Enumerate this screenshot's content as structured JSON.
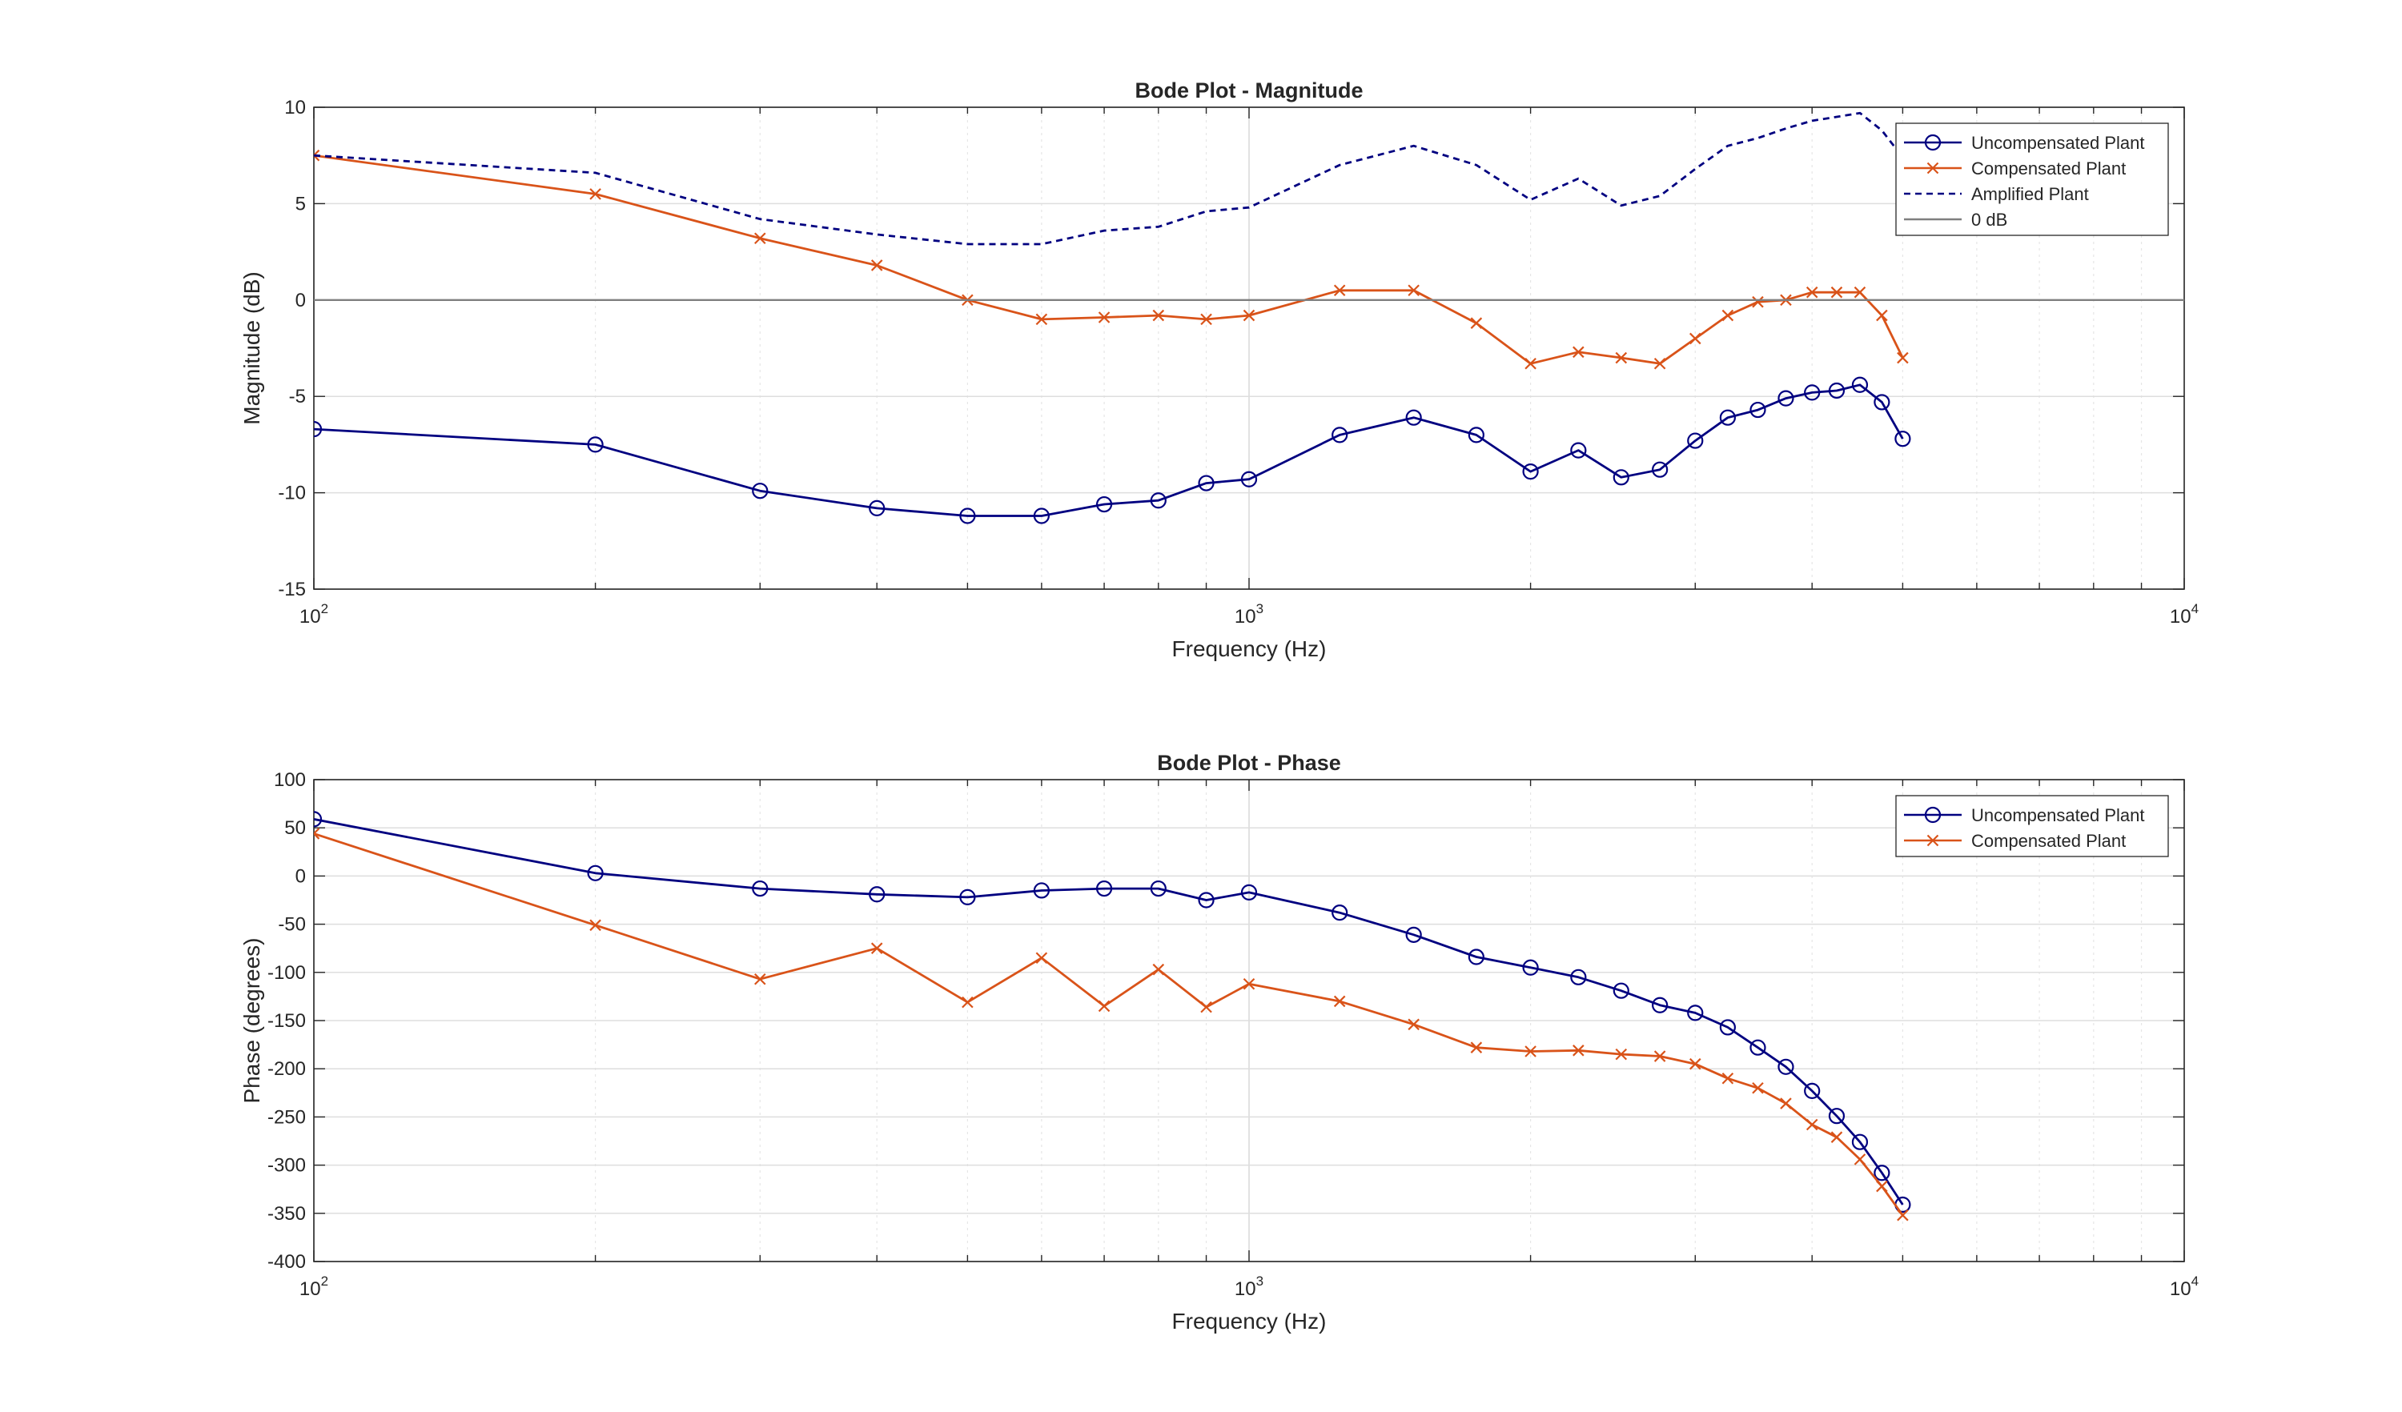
{
  "chart_data": [
    {
      "type": "line",
      "title": "Bode Plot - Magnitude",
      "xlabel": "Frequency (Hz)",
      "ylabel": "Magnitude (dB)",
      "xscale": "log",
      "xlim": [
        100,
        10000
      ],
      "ylim": [
        -15,
        10
      ],
      "yticks": [
        "10",
        "5",
        "0",
        "-5",
        "-10",
        "-15"
      ],
      "xticks": [
        {
          "base": "10",
          "exp": "2"
        },
        {
          "base": "10",
          "exp": "3"
        },
        {
          "base": "10",
          "exp": "4"
        }
      ],
      "grid": true,
      "legend_position": "top-right",
      "legend": [
        "Uncompensated Plant",
        "Compensated Plant",
        "Amplified Plant",
        "0 dB"
      ],
      "series": [
        {
          "name": "Uncompensated Plant",
          "color": "#000080",
          "marker": "circle",
          "style": "solid",
          "x": [
            100,
            200,
            300,
            400,
            500,
            600,
            700,
            800,
            900,
            1000,
            1250,
            1500,
            1750,
            2000,
            2250,
            2500,
            2750,
            3000,
            3250,
            3500,
            3750,
            4000,
            4250,
            4500,
            4750,
            5000
          ],
          "y": [
            -6.7,
            -7.5,
            -9.9,
            -10.8,
            -11.2,
            -11.2,
            -10.6,
            -10.4,
            -9.5,
            -9.3,
            -7.0,
            -6.1,
            -7.0,
            -8.9,
            -7.8,
            -9.2,
            -8.8,
            -7.3,
            -6.1,
            -5.7,
            -5.1,
            -4.8,
            -4.7,
            -4.4,
            -5.3,
            -7.2
          ]
        },
        {
          "name": "Compensated Plant",
          "color": "#D95319",
          "marker": "x",
          "style": "solid",
          "x": [
            100,
            200,
            300,
            400,
            500,
            600,
            700,
            800,
            900,
            1000,
            1250,
            1500,
            1750,
            2000,
            2250,
            2500,
            2750,
            3000,
            3250,
            3500,
            3750,
            4000,
            4250,
            4500,
            4750,
            5000
          ],
          "y": [
            7.5,
            5.5,
            3.2,
            1.8,
            0.0,
            -1.0,
            -0.9,
            -0.8,
            -1.0,
            -0.8,
            0.5,
            0.5,
            -1.2,
            -3.3,
            -2.7,
            -3.0,
            -3.3,
            -2.0,
            -0.8,
            -0.1,
            0.0,
            0.4,
            0.4,
            0.4,
            -0.8,
            -3.0
          ]
        },
        {
          "name": "Amplified Plant",
          "color": "#000080",
          "marker": "none",
          "style": "dashed",
          "x": [
            100,
            200,
            300,
            400,
            500,
            600,
            700,
            800,
            900,
            1000,
            1250,
            1500,
            1750,
            2000,
            2250,
            2500,
            2750,
            3000,
            3250,
            3500,
            3750,
            4000,
            4250,
            4500,
            4750,
            5000
          ],
          "y": [
            7.5,
            6.6,
            4.2,
            3.4,
            2.9,
            2.9,
            3.6,
            3.8,
            4.6,
            4.8,
            7.0,
            8.0,
            7.0,
            5.2,
            6.3,
            4.9,
            5.4,
            6.8,
            8.0,
            8.4,
            8.9,
            9.3,
            9.5,
            9.7,
            8.8,
            7.4
          ]
        },
        {
          "name": "0 dB",
          "color": "#7F7F7F",
          "marker": "none",
          "style": "solid",
          "x": [
            100,
            10000
          ],
          "y": [
            0,
            0
          ]
        }
      ]
    },
    {
      "type": "line",
      "title": "Bode Plot - Phase",
      "xlabel": "Frequency (Hz)",
      "ylabel": "Phase (degrees)",
      "xscale": "log",
      "xlim": [
        100,
        10000
      ],
      "ylim": [
        -400,
        100
      ],
      "yticks": [
        "100",
        "50",
        "0",
        "-50",
        "-100",
        "-150",
        "-200",
        "-250",
        "-300",
        "-350",
        "-400"
      ],
      "xticks": [
        {
          "base": "10",
          "exp": "2"
        },
        {
          "base": "10",
          "exp": "3"
        },
        {
          "base": "10",
          "exp": "4"
        }
      ],
      "grid": true,
      "legend_position": "top-right",
      "legend": [
        "Uncompensated Plant",
        "Compensated Plant"
      ],
      "series": [
        {
          "name": "Uncompensated Plant",
          "color": "#000080",
          "marker": "circle",
          "style": "solid",
          "x": [
            100,
            200,
            300,
            400,
            500,
            600,
            700,
            800,
            900,
            1000,
            1250,
            1500,
            1750,
            2000,
            2250,
            2500,
            2750,
            3000,
            3250,
            3500,
            3750,
            4000,
            4250,
            4500,
            4750,
            5000
          ],
          "y": [
            59,
            3,
            -13,
            -19,
            -22,
            -15,
            -13,
            -13,
            -25,
            -17,
            -38,
            -61,
            -84,
            -95,
            -105,
            -119,
            -134,
            -142,
            -157,
            -178,
            -198,
            -223,
            -249,
            -276,
            -308,
            -341
          ]
        },
        {
          "name": "Compensated Plant",
          "color": "#D95319",
          "marker": "x",
          "style": "solid",
          "x": [
            100,
            200,
            300,
            400,
            500,
            600,
            700,
            800,
            900,
            1000,
            1250,
            1500,
            1750,
            2000,
            2250,
            2500,
            2750,
            3000,
            3250,
            3500,
            3750,
            4000,
            4250,
            4500,
            4750,
            5000
          ],
          "y": [
            44,
            -51,
            -107,
            -75,
            -131,
            -85,
            -135,
            -97,
            -136,
            -112,
            -130,
            -154,
            -178,
            -182,
            -181,
            -185,
            -187,
            -195,
            -210,
            -220,
            -236,
            -258,
            -271,
            -294,
            -322,
            -352
          ]
        }
      ]
    }
  ]
}
